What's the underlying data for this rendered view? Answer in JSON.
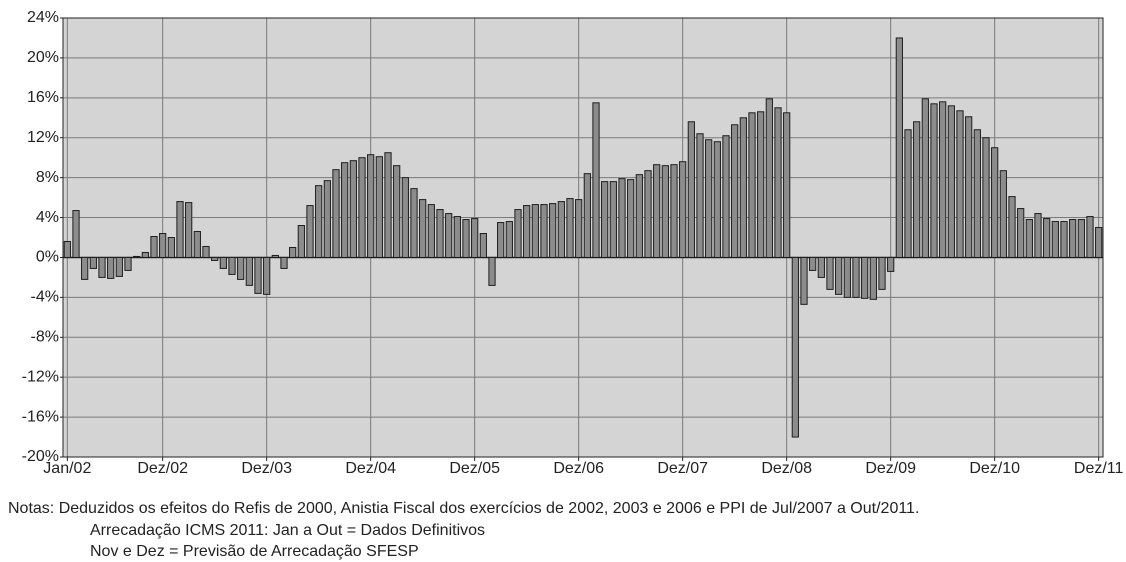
{
  "chart_data": {
    "type": "bar",
    "categories": [
      "Jan/02",
      null,
      null,
      null,
      null,
      null,
      null,
      null,
      null,
      null,
      null,
      "Dez/02",
      null,
      null,
      null,
      null,
      null,
      null,
      null,
      null,
      null,
      null,
      null,
      "Dez/03",
      null,
      null,
      null,
      null,
      null,
      null,
      null,
      null,
      null,
      null,
      null,
      "Dez/04",
      null,
      null,
      null,
      null,
      null,
      null,
      null,
      null,
      null,
      null,
      null,
      "Dez/05",
      null,
      null,
      null,
      null,
      null,
      null,
      null,
      null,
      null,
      null,
      null,
      "Dez/06",
      null,
      null,
      null,
      null,
      null,
      null,
      null,
      null,
      null,
      null,
      null,
      "Dez/07",
      null,
      null,
      null,
      null,
      null,
      null,
      null,
      null,
      null,
      null,
      null,
      "Dez/08",
      null,
      null,
      null,
      null,
      null,
      null,
      null,
      null,
      null,
      null,
      null,
      "Dez/09",
      null,
      null,
      null,
      null,
      null,
      null,
      null,
      null,
      null,
      null,
      null,
      "Dez/10",
      null,
      null,
      null,
      null,
      null,
      null,
      null,
      null,
      null,
      null,
      null,
      "Dez/11"
    ],
    "values": [
      1.6,
      4.7,
      -2.2,
      -1.1,
      -2.0,
      -2.1,
      -1.9,
      -1.3,
      0.1,
      0.5,
      2.1,
      2.4,
      2.0,
      5.6,
      5.5,
      2.6,
      1.1,
      -0.3,
      -1.1,
      -1.7,
      -2.2,
      -2.8,
      -3.6,
      -3.7,
      0.2,
      -1.1,
      1.0,
      3.2,
      5.2,
      7.2,
      7.7,
      8.8,
      9.5,
      9.7,
      10.0,
      10.3,
      10.1,
      10.5,
      9.2,
      8.0,
      6.9,
      5.8,
      5.3,
      4.8,
      4.4,
      4.1,
      3.8,
      3.9,
      2.4,
      -2.8,
      3.5,
      3.6,
      4.8,
      5.2,
      5.3,
      5.3,
      5.4,
      5.6,
      5.9,
      5.8,
      8.4,
      15.5,
      7.6,
      7.6,
      7.9,
      7.8,
      8.3,
      8.7,
      9.3,
      9.2,
      9.3,
      9.6,
      13.6,
      12.4,
      11.8,
      11.6,
      12.2,
      13.3,
      14.0,
      14.5,
      14.6,
      15.9,
      15.0,
      14.5,
      -18.0,
      -4.7,
      -1.3,
      -2.0,
      -3.2,
      -3.7,
      -4.0,
      -4.0,
      -4.1,
      -4.2,
      -3.2,
      -1.4,
      22.0,
      12.8,
      13.6,
      15.9,
      15.4,
      15.6,
      15.2,
      14.7,
      14.1,
      12.8,
      12.0,
      11.0,
      8.7,
      6.1,
      4.9,
      3.8,
      4.4,
      3.9,
      3.6,
      3.6,
      3.8,
      3.8,
      4.1,
      3.0
    ],
    "color": "#8c8c8c",
    "ylim": [
      -20,
      24
    ],
    "yticks": [
      {
        "value": -20,
        "label": "-20%"
      },
      {
        "value": -16,
        "label": "-16%"
      },
      {
        "value": -12,
        "label": "-12%"
      },
      {
        "value": -8,
        "label": "-8%"
      },
      {
        "value": -4,
        "label": "-4%"
      },
      {
        "value": 0,
        "label": "0%"
      },
      {
        "value": 4,
        "label": "4%"
      },
      {
        "value": 8,
        "label": "8%"
      },
      {
        "value": 12,
        "label": "12%"
      },
      {
        "value": 16,
        "label": "16%"
      },
      {
        "value": 20,
        "label": "20%"
      },
      {
        "value": 24,
        "label": "24%"
      }
    ],
    "grid": true,
    "notes": [
      "Notas: Deduzidos os efeitos do Refis de 2000, Anistia Fiscal dos exercícios de 2002, 2003 e 2006 e PPI de Jul/2007 a Out/2011.",
      "Arrecadação ICMS 2011: Jan a Out = Dados Definitivos",
      "Nov e Dez = Previsão de Arrecadação SFESP"
    ]
  }
}
